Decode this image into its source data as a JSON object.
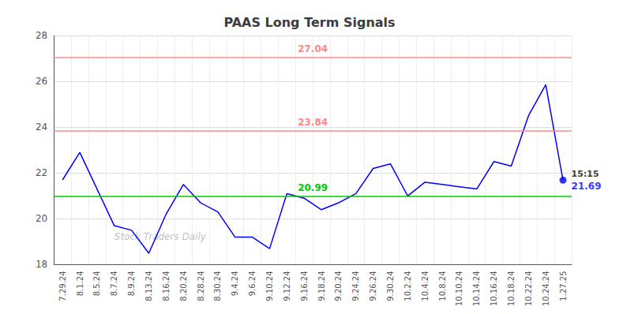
{
  "chart_data": {
    "type": "line",
    "title": "PAAS Long Term Signals",
    "categories": [
      "7.29.24",
      "8.1.24",
      "8.5.24",
      "8.7.24",
      "8.9.24",
      "8.13.24",
      "8.16.24",
      "8.20.24",
      "8.28.24",
      "8.30.24",
      "9.4.24",
      "9.6.24",
      "9.10.24",
      "9.12.24",
      "9.16.24",
      "9.18.24",
      "9.20.24",
      "9.24.24",
      "9.26.24",
      "9.30.24",
      "10.2.24",
      "10.4.24",
      "10.8.24",
      "10.10.24",
      "10.14.24",
      "10.16.24",
      "10.18.24",
      "10.22.24",
      "10.24.24",
      "1.27.25"
    ],
    "values": [
      21.7,
      22.9,
      21.3,
      19.7,
      19.5,
      18.5,
      20.2,
      21.5,
      20.7,
      20.3,
      19.2,
      19.2,
      18.7,
      21.1,
      20.9,
      20.4,
      20.7,
      21.1,
      22.2,
      22.4,
      21.0,
      21.6,
      21.5,
      21.4,
      21.3,
      22.5,
      22.3,
      24.5,
      25.85,
      21.69
    ],
    "color": "#0000ff",
    "hlines": [
      {
        "value": 20.99,
        "label": "20.99",
        "color": "#00cc00"
      },
      {
        "value": 23.84,
        "label": "23.84",
        "color": "#ff8888"
      },
      {
        "value": 27.04,
        "label": "27.04",
        "color": "#ff8888"
      }
    ],
    "last_point_labels": [
      "15:15",
      "21.69"
    ],
    "watermark": "Stock Traders Daily",
    "ylim": [
      18,
      28
    ],
    "yticks": [
      18,
      20,
      22,
      24,
      26,
      28
    ],
    "grid": true
  }
}
